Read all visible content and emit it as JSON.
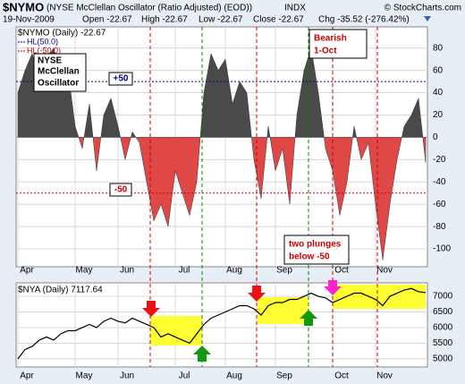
{
  "header": {
    "symbol": "$NYMO",
    "name": "(NYSE McClellan Oscillator (Ratio Adjusted) (EOD))",
    "exchange": "INDX",
    "copyright": "© StockCharts.com",
    "date": "19-Nov-2009",
    "open": "Open -22.67",
    "high": "High -22.67",
    "low": "Low -22.67",
    "close": "Close -22.67",
    "change": "Chg -35.52 (-276.42%)"
  },
  "annotations": {
    "oscillator": [
      "NYSE",
      "McClellan",
      "Oscillator"
    ],
    "plus50": "+50",
    "minus50": "-50",
    "bearish": [
      "Bearish",
      "1-Oct"
    ],
    "plunges": [
      "two plunges",
      "below -50"
    ]
  },
  "chart_data": [
    {
      "type": "area",
      "legend": "$NYMO (Daily) -22.67",
      "categories": [
        "Apr",
        null,
        null,
        null,
        null,
        null,
        null,
        null,
        "May",
        null,
        null,
        null,
        null,
        null,
        "Jun",
        null,
        null,
        null,
        null,
        null,
        null,
        null,
        "Jul",
        null,
        null,
        null,
        null,
        null,
        null,
        "Aug",
        null,
        null,
        null,
        null,
        null,
        null,
        "Sep",
        null,
        null,
        null,
        null,
        null,
        null,
        null,
        "Oct",
        null,
        null,
        null,
        null,
        null,
        "Nov",
        null,
        null,
        null,
        null,
        null,
        null,
        null
      ],
      "values": [
        40,
        60,
        75,
        50,
        70,
        80,
        45,
        60,
        10,
        -10,
        30,
        -30,
        20,
        35,
        10,
        -20,
        5,
        -5,
        -40,
        -75,
        -60,
        -80,
        -30,
        -50,
        -70,
        -40,
        40,
        75,
        60,
        70,
        30,
        50,
        40,
        -20,
        -55,
        10,
        -30,
        -10,
        -60,
        20,
        60,
        80,
        40,
        -10,
        -30,
        -70,
        -40,
        10,
        -20,
        -5,
        -60,
        -110,
        -60,
        -20,
        10,
        20,
        35,
        -22.67
      ],
      "positive_color": "#4a4a4a",
      "negative_color": "#e04848",
      "hlines": [
        {
          "name": "HL(50.0)",
          "value": 50,
          "color": "#00008b"
        },
        {
          "name": "HL(-50.0)",
          "value": -50,
          "color": "#cc0000"
        }
      ],
      "ylim": [
        -116,
        99
      ],
      "yticks": [
        80,
        60,
        40,
        20,
        0,
        -20,
        -40,
        -60,
        -80,
        -100
      ],
      "grid": true
    },
    {
      "type": "line",
      "legend": "$NYA (Daily) 7117.64",
      "color": "#000000",
      "values": [
        5000,
        5300,
        5400,
        5600,
        5700,
        5600,
        5800,
        5900,
        5900,
        6000,
        6100,
        6000,
        6200,
        6300,
        6200,
        6150,
        6300,
        6200,
        6100,
        6000,
        5700,
        5800,
        5700,
        5600,
        5500,
        5800,
        6100,
        6300,
        6400,
        6500,
        6600,
        6700,
        6700,
        6600,
        6400,
        6700,
        6800,
        6800,
        6900,
        6900,
        7000,
        7100,
        7000,
        6950,
        6800,
        6900,
        7000,
        7100,
        7100,
        7000,
        6900,
        6700,
        7000,
        7100,
        7200,
        7250,
        7150,
        7117.64
      ],
      "ylim": [
        4740,
        7430
      ],
      "yticks": [
        7000,
        6500,
        6000,
        5500,
        5000
      ],
      "grid": true
    }
  ]
}
